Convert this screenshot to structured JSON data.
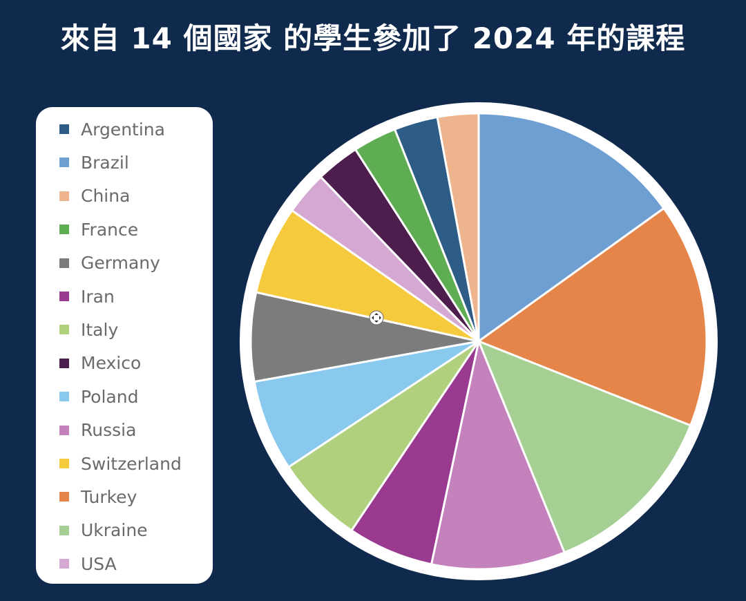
{
  "chart_data": {
    "type": "pie",
    "title": "來自 14 個國家 的學生參加了 2024 年的課程",
    "legend_position": "left",
    "slices": [
      {
        "label": "Brazil",
        "value": 16.1,
        "color": "#6e9fd3"
      },
      {
        "label": "Turkey",
        "value": 17.0,
        "color": "#e5854a"
      },
      {
        "label": "Ukraine",
        "value": 13.7,
        "color": "#a6cf93"
      },
      {
        "label": "Russia",
        "value": 10.1,
        "color": "#c482bd"
      },
      {
        "label": "Iran",
        "value": 6.5,
        "color": "#993a90"
      },
      {
        "label": "Italy",
        "value": 6.7,
        "color": "#b0d07e"
      },
      {
        "label": "Poland",
        "value": 6.9,
        "color": "#89c9ee"
      },
      {
        "label": "Germany",
        "value": 6.7,
        "color": "#7c7c7c"
      },
      {
        "label": "Switzerland",
        "value": 6.7,
        "color": "#f5ca3d"
      },
      {
        "label": "USA",
        "value": 3.3,
        "color": "#d4a8d3"
      },
      {
        "label": "Mexico",
        "value": 3.3,
        "color": "#4d1d4e"
      },
      {
        "label": "France",
        "value": 3.3,
        "color": "#5fad52"
      },
      {
        "label": "Argentina",
        "value": 3.3,
        "color": "#2d5c86"
      },
      {
        "label": "China",
        "value": 3.1,
        "color": "#edb48e"
      }
    ],
    "legend": [
      {
        "label": "Argentina",
        "color": "#2d5c86"
      },
      {
        "label": "Brazil",
        "color": "#6e9fd3"
      },
      {
        "label": "China",
        "color": "#edb48e"
      },
      {
        "label": "France",
        "color": "#5fad52"
      },
      {
        "label": "Germany",
        "color": "#7c7c7c"
      },
      {
        "label": "Iran",
        "color": "#993a90"
      },
      {
        "label": "Italy",
        "color": "#b0d07e"
      },
      {
        "label": "Mexico",
        "color": "#4d1d4e"
      },
      {
        "label": "Poland",
        "color": "#89c9ee"
      },
      {
        "label": "Russia",
        "color": "#c482bd"
      },
      {
        "label": "Switzerland",
        "color": "#f5ca3d"
      },
      {
        "label": "Turkey",
        "color": "#e5854a"
      },
      {
        "label": "Ukraine",
        "color": "#a6cf93"
      },
      {
        "label": "USA",
        "color": "#d4a8d3"
      }
    ]
  }
}
